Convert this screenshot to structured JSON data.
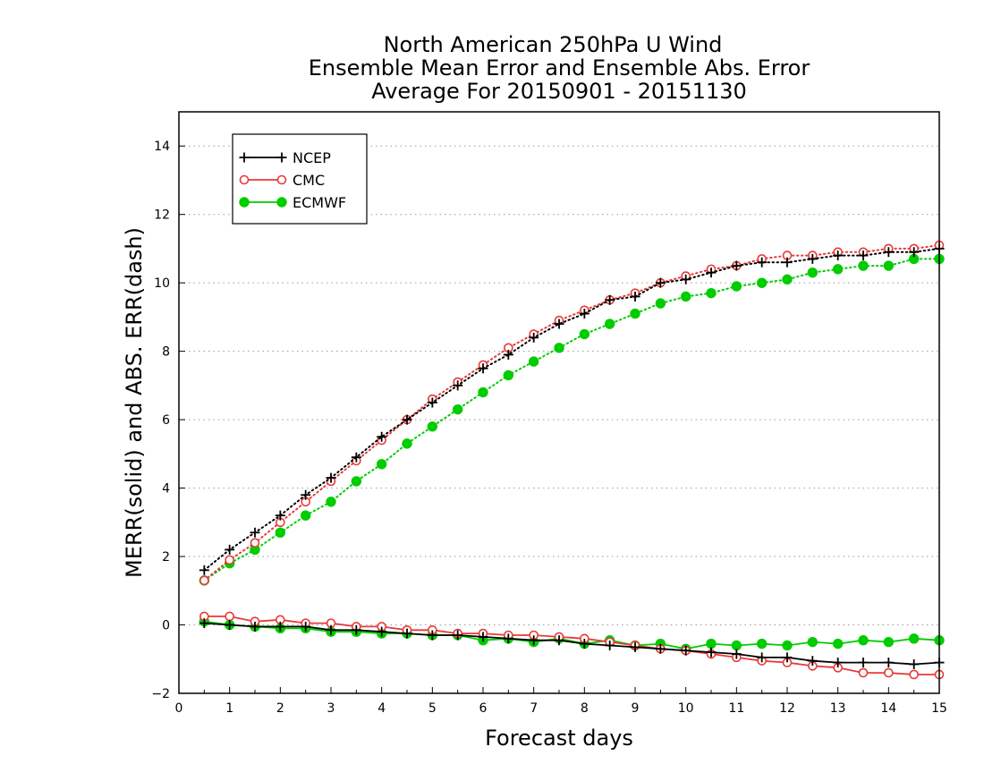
{
  "chart_data": {
    "type": "line",
    "title": [
      "North American 250hPa U Wind",
      "Ensemble Mean Error and Ensemble Abs. Error",
      "Average For 20150901 - 20151130"
    ],
    "xlabel": "Forecast days",
    "ylabel": "MERR(solid) and ABS. ERR(dash)",
    "xlim": [
      0,
      15
    ],
    "ylim": [
      -2,
      15
    ],
    "xticks": [
      0,
      1,
      2,
      3,
      4,
      5,
      6,
      7,
      8,
      9,
      10,
      11,
      12,
      13,
      14,
      15
    ],
    "yticks": [
      -2,
      0,
      2,
      4,
      6,
      8,
      10,
      12,
      14
    ],
    "grid": "horizontal dotted",
    "legend_position": "top-left",
    "x": [
      0.5,
      1,
      1.5,
      2,
      2.5,
      3,
      3.5,
      4,
      4.5,
      5,
      5.5,
      6,
      6.5,
      7,
      7.5,
      8,
      8.5,
      9,
      9.5,
      10,
      10.5,
      11,
      11.5,
      12,
      12.5,
      13,
      13.5,
      14,
      14.5,
      15
    ],
    "series": [
      {
        "name": "NCEP",
        "color": "#000000",
        "marker": "plus",
        "abs_error": [
          1.6,
          2.2,
          2.7,
          3.2,
          3.8,
          4.3,
          4.9,
          5.5,
          6.0,
          6.5,
          7.0,
          7.5,
          7.9,
          8.4,
          8.8,
          9.1,
          9.5,
          9.6,
          10.0,
          10.1,
          10.3,
          10.5,
          10.6,
          10.6,
          10.7,
          10.8,
          10.8,
          10.9,
          10.9,
          11.0
        ],
        "mean_error": [
          0.05,
          0.0,
          -0.05,
          -0.05,
          -0.05,
          -0.15,
          -0.15,
          -0.2,
          -0.25,
          -0.3,
          -0.3,
          -0.35,
          -0.4,
          -0.45,
          -0.45,
          -0.55,
          -0.6,
          -0.65,
          -0.7,
          -0.75,
          -0.8,
          -0.85,
          -0.95,
          -0.95,
          -1.05,
          -1.1,
          -1.1,
          -1.1,
          -1.15,
          -1.1
        ]
      },
      {
        "name": "CMC",
        "color": "#e83a3a",
        "marker": "open-circle",
        "abs_error": [
          1.3,
          1.9,
          2.4,
          3.0,
          3.6,
          4.2,
          4.8,
          5.4,
          6.0,
          6.6,
          7.1,
          7.6,
          8.1,
          8.5,
          8.9,
          9.2,
          9.5,
          9.7,
          10.0,
          10.2,
          10.4,
          10.5,
          10.7,
          10.8,
          10.8,
          10.9,
          10.9,
          11.0,
          11.0,
          11.1
        ],
        "mean_error": [
          0.25,
          0.25,
          0.1,
          0.15,
          0.05,
          0.05,
          -0.05,
          -0.05,
          -0.15,
          -0.15,
          -0.25,
          -0.25,
          -0.3,
          -0.3,
          -0.35,
          -0.4,
          -0.5,
          -0.6,
          -0.7,
          -0.75,
          -0.85,
          -0.95,
          -1.05,
          -1.1,
          -1.2,
          -1.25,
          -1.4,
          -1.4,
          -1.45,
          -1.45
        ]
      },
      {
        "name": "ECMWF",
        "color": "#00cc00",
        "marker": "filled-circle",
        "abs_error": [
          1.3,
          1.8,
          2.2,
          2.7,
          3.2,
          3.6,
          4.2,
          4.7,
          5.3,
          5.8,
          6.3,
          6.8,
          7.3,
          7.7,
          8.1,
          8.5,
          8.8,
          9.1,
          9.4,
          9.6,
          9.7,
          9.9,
          10.0,
          10.1,
          10.3,
          10.4,
          10.5,
          10.5,
          10.7,
          10.7
        ],
        "mean_error": [
          0.1,
          0.0,
          -0.05,
          -0.1,
          -0.1,
          -0.2,
          -0.2,
          -0.25,
          -0.25,
          -0.3,
          -0.3,
          -0.45,
          -0.4,
          -0.5,
          -0.4,
          -0.55,
          -0.45,
          -0.6,
          -0.55,
          -0.7,
          -0.55,
          -0.6,
          -0.55,
          -0.6,
          -0.5,
          -0.55,
          -0.45,
          -0.5,
          -0.4,
          -0.45
        ]
      }
    ]
  }
}
